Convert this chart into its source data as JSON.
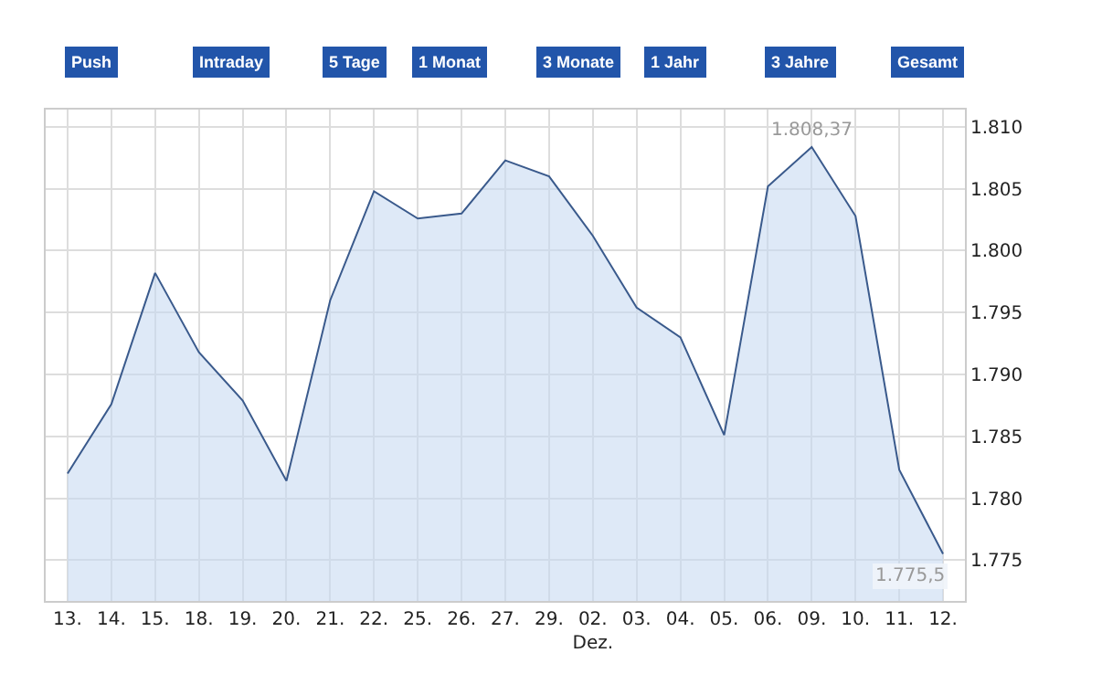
{
  "chart_data": {
    "type": "area",
    "categories": [
      "13.",
      "14.",
      "15.",
      "18.",
      "19.",
      "20.",
      "21.",
      "22.",
      "25.",
      "26.",
      "27.",
      "29.",
      "02.\nDez.",
      "03.",
      "04.",
      "05.",
      "06.",
      "09.",
      "10.",
      "11.",
      "12."
    ],
    "series": [
      {
        "color": "#3a5a8c",
        "values": [
          1782.0,
          1787.6,
          1798.2,
          1791.8,
          1787.9,
          1781.4,
          1796.0,
          1804.8,
          1802.6,
          1803.0,
          1807.3,
          1806.0,
          1801.2,
          1795.4,
          1793.0,
          1785.1,
          1805.2,
          1808.37,
          1802.8,
          1782.3,
          1775.5
        ]
      }
    ],
    "ylim": [
      1771.7,
      1811.4
    ],
    "yticks": [
      {
        "value": 1775,
        "label": "1.775"
      },
      {
        "value": 1780,
        "label": "1.780"
      },
      {
        "value": 1785,
        "label": "1.785"
      },
      {
        "value": 1790,
        "label": "1.790"
      },
      {
        "value": 1795,
        "label": "1.795"
      },
      {
        "value": 1800,
        "label": "1.800"
      },
      {
        "value": 1805,
        "label": "1.805"
      },
      {
        "value": 1810,
        "label": "1.810"
      }
    ],
    "grid": true,
    "annotations": [
      "Push",
      "Intraday",
      "5 Tage",
      "1 Monat",
      "3 Monate",
      "1 Jahr",
      "3 Jahre",
      "Gesamt",
      {
        "text": "1.808,37",
        "x": "09.",
        "y": 1808.37
      },
      {
        "text": "1.775,5",
        "x": "12.",
        "y": 1775.5
      }
    ]
  }
}
